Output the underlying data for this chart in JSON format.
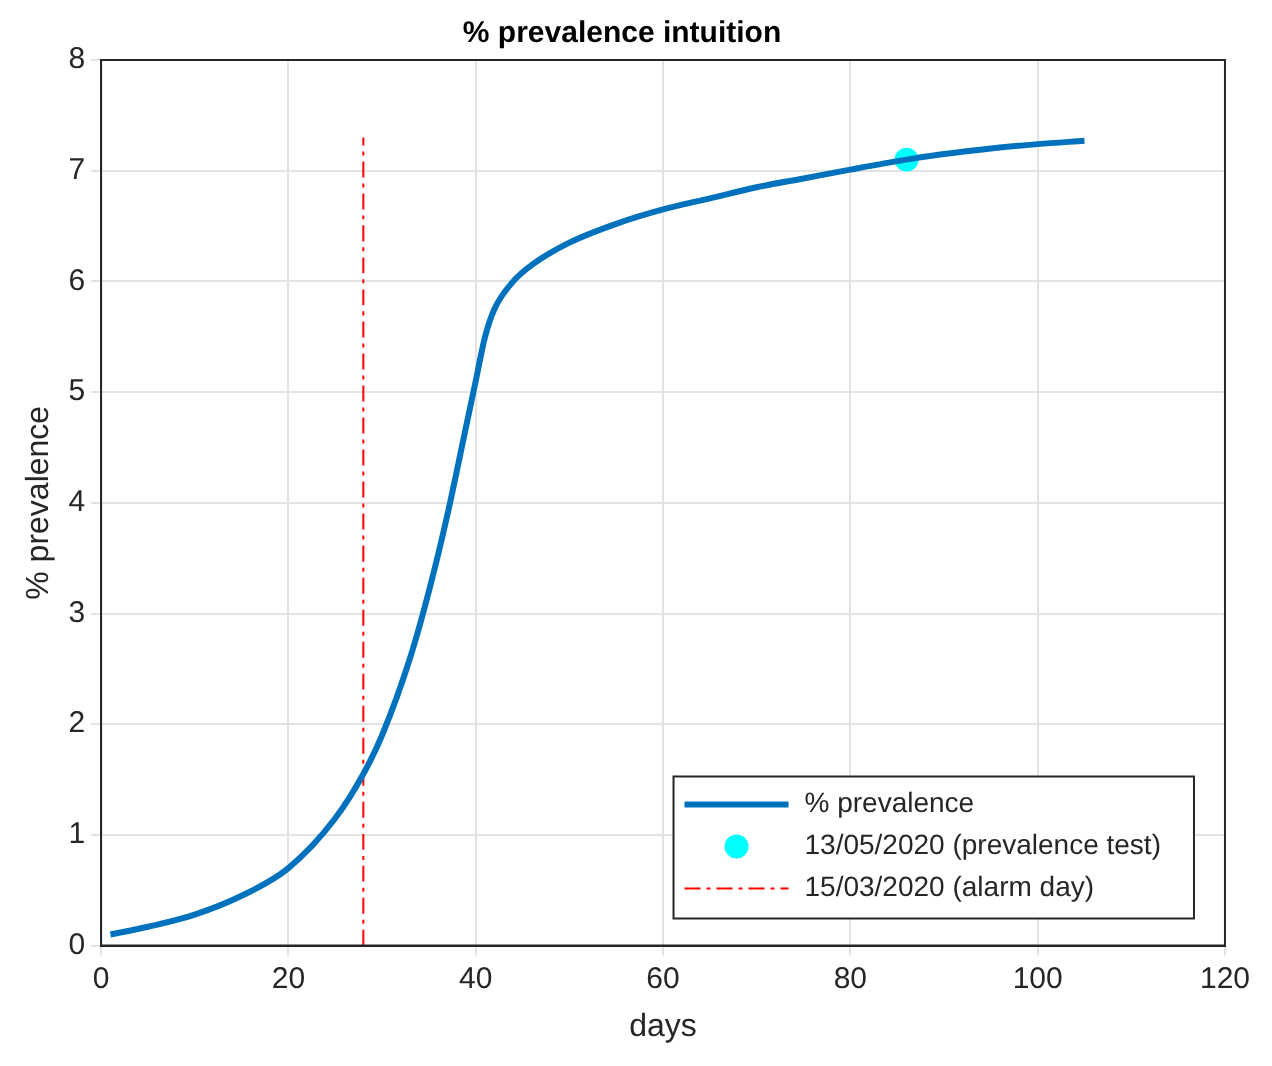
{
  "chart_data": {
    "type": "line",
    "title": "% prevalence intuition",
    "xlabel": "days",
    "ylabel": "% prevalence",
    "xlim": [
      0,
      120
    ],
    "xticks": [
      0,
      20,
      40,
      60,
      80,
      100,
      120
    ],
    "ylim": [
      0,
      8
    ],
    "yticks": [
      0,
      1,
      2,
      3,
      4,
      5,
      6,
      7,
      8
    ],
    "grid": true,
    "legend": "bottom right",
    "series": [
      {
        "name": "% prevalence",
        "type": "line",
        "color": "#0072bd",
        "line_style": "solid",
        "marker": "none",
        "x": [
          1,
          5,
          10,
          15,
          20,
          25,
          28,
          30,
          33,
          35,
          37,
          39,
          40,
          41,
          42,
          44,
          46,
          50,
          55,
          60,
          65,
          70,
          75,
          80,
          86,
          90,
          95,
          100,
          105
        ],
        "values": [
          0.1,
          0.17,
          0.28,
          0.45,
          0.7,
          1.15,
          1.55,
          1.9,
          2.6,
          3.2,
          3.9,
          4.7,
          5.1,
          5.5,
          5.75,
          6.0,
          6.15,
          6.35,
          6.52,
          6.65,
          6.75,
          6.85,
          6.93,
          7.01,
          7.1,
          7.15,
          7.2,
          7.24,
          7.27
        ]
      },
      {
        "name": "13/05/2020 (prevalence test)",
        "type": "scatter",
        "color": "#00ffff",
        "marker": "circle",
        "x": [
          86
        ],
        "values": [
          7.1
        ]
      },
      {
        "name": "15/03/2020 (alarm day)",
        "type": "line",
        "color": "#ff0000",
        "line_style": "dashed",
        "marker": "none",
        "x": [
          28,
          28
        ],
        "values": [
          0,
          7.3
        ]
      }
    ]
  }
}
